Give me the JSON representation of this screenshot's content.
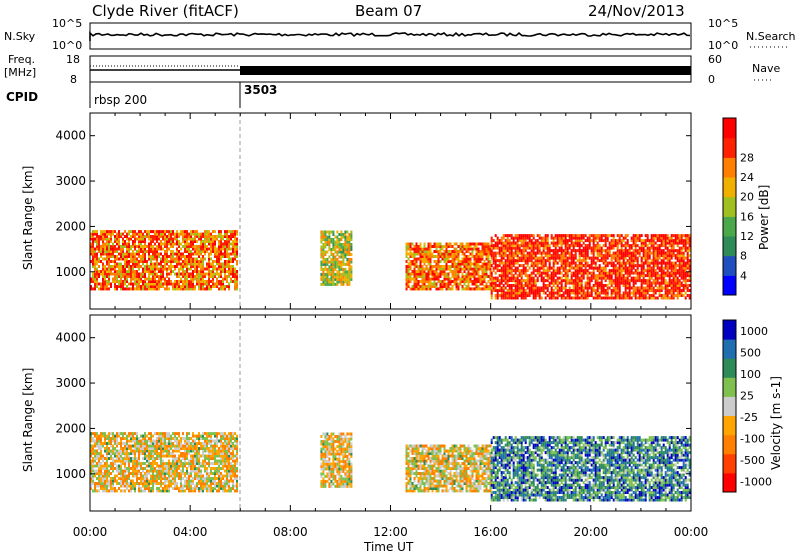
{
  "header": {
    "station": "Clyde River (fitACF)",
    "beam": "Beam 07",
    "date": "24/Nov/2013"
  },
  "nsky_panel": {
    "left_label": "N.Sky",
    "right_label": "N.Search",
    "left_ticks": [
      "10^5",
      "10^0"
    ],
    "right_ticks": [
      "10^5",
      "10^0"
    ]
  },
  "freq_panel": {
    "left_label_1": "Freq.",
    "left_label_2": "[MHz]",
    "right_label": "Nave",
    "left_ticks": [
      "18",
      "8"
    ],
    "right_ticks": [
      "60",
      "0"
    ]
  },
  "cpid_panel": {
    "label": "CPID",
    "segments": [
      {
        "start_hour": 0,
        "label": "rbsp 200"
      },
      {
        "start_hour": 6,
        "label": "3503"
      }
    ]
  },
  "colors": {
    "power_scale": [
      "#0000ff",
      "#1f4fbf",
      "#2e8b57",
      "#4aa84a",
      "#a0c020",
      "#f0b000",
      "#ff7f00",
      "#ff2000",
      "#ff0000"
    ],
    "velocity_scale": [
      "#ff0000",
      "#ff4000",
      "#ff7f00",
      "#ffa500",
      "#cccccc",
      "#7fc04f",
      "#2e8b57",
      "#1f6fb0",
      "#0000c0"
    ]
  },
  "chart_data": [
    {
      "type": "heatmap",
      "name": "power",
      "ylabel": "Slant Range [km]",
      "yticks": [
        1000,
        2000,
        3000,
        4000
      ],
      "ylim": [
        180,
        4500
      ],
      "xlim": [
        0,
        24
      ],
      "colorbar": {
        "label": "Power [dB]",
        "ticks": [
          "4",
          "8",
          "12",
          "16",
          "20",
          "24",
          "28"
        ],
        "range": [
          0,
          30
        ]
      },
      "regions": [
        {
          "x0": 0.0,
          "x1": 5.9,
          "y0": 600,
          "y1": 1900,
          "value": 22
        },
        {
          "x0": 9.2,
          "x1": 10.4,
          "y0": 700,
          "y1": 1900,
          "value": 16
        },
        {
          "x0": 12.6,
          "x1": 16.0,
          "y0": 600,
          "y1": 1600,
          "value": 22
        },
        {
          "x0": 16.0,
          "x1": 24.0,
          "y0": 400,
          "y1": 1800,
          "value": 26
        }
      ]
    },
    {
      "type": "heatmap",
      "name": "velocity",
      "ylabel": "Slant Range [km]",
      "yticks": [
        1000,
        2000,
        3000,
        4000
      ],
      "ylim": [
        180,
        4500
      ],
      "xlim": [
        0,
        24
      ],
      "colorbar": {
        "label": "Velocity [m s-1]",
        "ticks": [
          "1000",
          "500",
          "100",
          "25",
          "-25",
          "-100",
          "-500",
          "-1000"
        ],
        "range": [
          -1200,
          1200
        ]
      },
      "regions": [
        {
          "x0": 0.0,
          "x1": 5.9,
          "y0": 600,
          "y1": 1900,
          "value": -100
        },
        {
          "x0": 9.2,
          "x1": 10.4,
          "y0": 700,
          "y1": 1900,
          "value": -100
        },
        {
          "x0": 12.6,
          "x1": 16.0,
          "y0": 600,
          "y1": 1600,
          "value": -100
        },
        {
          "x0": 16.0,
          "x1": 24.0,
          "y0": 400,
          "y1": 1800,
          "value": 600
        }
      ]
    }
  ],
  "xaxis": {
    "label": "Time UT",
    "ticks": [
      "00:00",
      "04:00",
      "08:00",
      "12:00",
      "16:00",
      "20:00",
      "00:00"
    ]
  }
}
